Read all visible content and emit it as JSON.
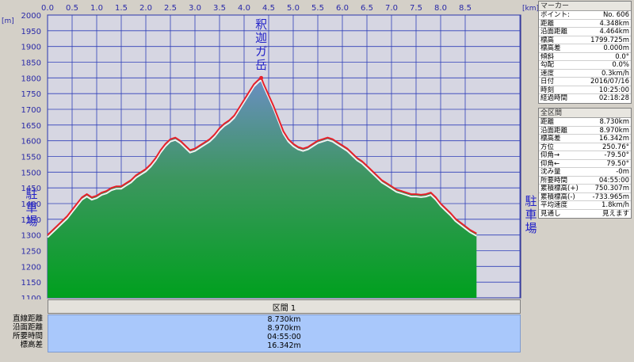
{
  "chart_data": {
    "type": "area",
    "x_unit": "[km]",
    "y_unit": "[m]",
    "xlim": [
      0.0,
      8.73
    ],
    "ylim": [
      1100,
      2000
    ],
    "x_ticks": [
      "0.0",
      "0.5",
      "1.0",
      "1.5",
      "2.0",
      "2.5",
      "3.0",
      "3.5",
      "4.0",
      "4.5",
      "5.0",
      "5.5",
      "6.0",
      "6.5",
      "7.0",
      "7.5",
      "8.0",
      "8.5"
    ],
    "y_ticks": [
      "2000",
      "1950",
      "1900",
      "1850",
      "1800",
      "1750",
      "1700",
      "1650",
      "1600",
      "1550",
      "1500",
      "1450",
      "1400",
      "1350",
      "1300",
      "1250",
      "1200",
      "1150",
      "1100"
    ],
    "grid": true,
    "series": [
      {
        "x": [
          0.0,
          0.1,
          0.2,
          0.3,
          0.4,
          0.5,
          0.6,
          0.7,
          0.8,
          0.9,
          1.0,
          1.1,
          1.2,
          1.3,
          1.4,
          1.5,
          1.6,
          1.7,
          1.8,
          1.9,
          2.0,
          2.1,
          2.2,
          2.3,
          2.4,
          2.5,
          2.6,
          2.7,
          2.8,
          2.9,
          3.0,
          3.1,
          3.2,
          3.3,
          3.4,
          3.5,
          3.6,
          3.7,
          3.8,
          3.9,
          4.0,
          4.1,
          4.2,
          4.3,
          4.35,
          4.4,
          4.5,
          4.6,
          4.7,
          4.8,
          4.9,
          5.0,
          5.1,
          5.2,
          5.3,
          5.4,
          5.5,
          5.6,
          5.7,
          5.8,
          5.9,
          6.0,
          6.1,
          6.2,
          6.3,
          6.4,
          6.5,
          6.6,
          6.7,
          6.8,
          6.9,
          7.0,
          7.1,
          7.2,
          7.3,
          7.4,
          7.5,
          7.6,
          7.7,
          7.8,
          7.9,
          8.0,
          8.1,
          8.2,
          8.3,
          8.4,
          8.5,
          8.6,
          8.73
        ],
        "y": [
          1300,
          1315,
          1330,
          1345,
          1360,
          1380,
          1400,
          1420,
          1430,
          1420,
          1425,
          1435,
          1440,
          1450,
          1455,
          1455,
          1465,
          1475,
          1490,
          1500,
          1510,
          1525,
          1545,
          1570,
          1590,
          1605,
          1610,
          1600,
          1585,
          1570,
          1575,
          1585,
          1595,
          1605,
          1620,
          1640,
          1655,
          1665,
          1680,
          1705,
          1730,
          1755,
          1780,
          1795,
          1800,
          1780,
          1745,
          1710,
          1670,
          1630,
          1605,
          1590,
          1580,
          1575,
          1580,
          1590,
          1600,
          1605,
          1610,
          1605,
          1595,
          1585,
          1575,
          1560,
          1545,
          1535,
          1520,
          1505,
          1490,
          1475,
          1465,
          1455,
          1445,
          1440,
          1435,
          1430,
          1430,
          1428,
          1430,
          1435,
          1420,
          1400,
          1385,
          1370,
          1352,
          1340,
          1328,
          1316,
          1305
        ]
      }
    ],
    "annotations": [
      {
        "text": "釈迦ガ岳",
        "x": 4.348,
        "y": 1800
      },
      {
        "text": "駐車場",
        "x": 0.0,
        "y": 1380
      },
      {
        "text": "駐車場",
        "x": 8.73,
        "y": 1380
      }
    ]
  },
  "section": {
    "title": "区間 1",
    "rows": [
      {
        "label": "直線距離",
        "value": "8.730km"
      },
      {
        "label": "沿面距離",
        "value": "8.970km"
      },
      {
        "label": "所要時間",
        "value": "04:55:00"
      },
      {
        "label": "標高差",
        "value": "16.342m"
      }
    ]
  },
  "marker_panel": {
    "title": "マーカー",
    "rows": [
      {
        "k": "ポイント:",
        "v": "No. 606"
      },
      {
        "k": "距離",
        "v": "4.348km"
      },
      {
        "k": "沿面距離",
        "v": "4.464km"
      },
      {
        "k": "標高",
        "v": "1799.725m"
      },
      {
        "k": "標高差",
        "v": "0.000m"
      },
      {
        "k": "傾斜",
        "v": "0.0°"
      },
      {
        "k": "勾配",
        "v": "0.0%"
      },
      {
        "k": "速度",
        "v": "0.3km/h"
      },
      {
        "k": "日付",
        "v": "2016/07/16"
      },
      {
        "k": "時刻",
        "v": "10:25:00"
      },
      {
        "k": "経過時間",
        "v": "02:18:28"
      }
    ]
  },
  "total_panel": {
    "title": "全区間",
    "rows": [
      {
        "k": "距離",
        "v": "8.730km"
      },
      {
        "k": "沿面距離",
        "v": "8.970km"
      },
      {
        "k": "標高差",
        "v": "16.342m"
      },
      {
        "k": "方位",
        "v": "250.76°"
      },
      {
        "k": "仰角→",
        "v": "-79.50°"
      },
      {
        "k": "仰角←",
        "v": "79.50°"
      },
      {
        "k": "沈み量",
        "v": "-0m"
      },
      {
        "k": "所要時間",
        "v": "04:55:00"
      },
      {
        "k": "累積標高(+)",
        "v": "750.307m"
      },
      {
        "k": "累積標高(-)",
        "v": "-733.965m"
      },
      {
        "k": "平均速度",
        "v": "1.8km/h"
      },
      {
        "k": "見通し",
        "v": "見えます"
      }
    ]
  },
  "colors": {
    "plot_bg": "#d6d6e2",
    "grid": "#2f3fb8",
    "fill_top": "#6b8ec4",
    "fill_bottom": "#00a01e",
    "profile_line": "#e8202a",
    "shadow_line": "#f0f0f0",
    "tick_text": "#2a2aa8"
  }
}
